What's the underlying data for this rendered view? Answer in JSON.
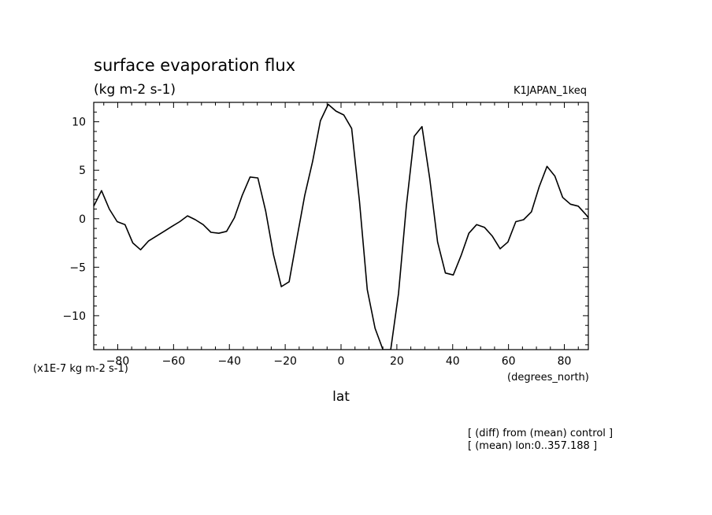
{
  "chart_data": {
    "type": "line",
    "title": "surface evaporation flux",
    "units": "(kg m-2 s-1)",
    "experiment": "K1JAPAN_1keq",
    "scale_note": "(x1E-7 kg m-2 s-1)",
    "xlabel": "lat",
    "xunits": "(degrees_north)",
    "note1": "[ (diff) from (mean) control ]",
    "note2": "[ (mean) lon:0..357.188 ]",
    "xlim": [
      -88.6,
      88.6
    ],
    "ylim": [
      -13.5,
      12.0
    ],
    "xticks": [
      -80,
      -60,
      -40,
      -20,
      0,
      20,
      40,
      60,
      80
    ],
    "yticks": [
      -10,
      -5,
      0,
      5,
      10
    ],
    "grid": false,
    "series": [
      {
        "x": [
          -88.6,
          -85.8,
          -83.0,
          -80.2,
          -77.4,
          -74.6,
          -71.8,
          -69.0,
          -66.2,
          -63.4,
          -60.6,
          -57.8,
          -55.0,
          -52.2,
          -49.4,
          -46.6,
          -43.8,
          -41.0,
          -38.2,
          -35.4,
          -32.6,
          -29.8,
          -27.0,
          -24.2,
          -21.4,
          -18.6,
          -15.8,
          -13.0,
          -10.2,
          -7.4,
          -4.6,
          -1.8,
          1.0,
          3.8,
          6.6,
          9.4,
          12.2,
          15.0,
          17.8,
          20.6,
          23.4,
          26.2,
          29.0,
          31.8,
          34.6,
          37.4,
          40.2,
          43.0,
          45.8,
          48.6,
          51.4,
          54.2,
          57.0,
          59.8,
          62.6,
          65.4,
          68.2,
          71.0,
          73.8,
          76.6,
          79.4,
          82.2,
          85.0,
          87.8,
          88.6
        ],
        "y": [
          1.3,
          2.9,
          1.0,
          -0.3,
          -0.6,
          -2.5,
          -3.2,
          -2.3,
          -1.8,
          -1.3,
          -0.8,
          -0.3,
          0.3,
          -0.1,
          -0.6,
          -1.4,
          -1.5,
          -1.3,
          0.1,
          2.4,
          4.3,
          4.2,
          0.8,
          -3.7,
          -7.0,
          -6.5,
          -2.0,
          2.4,
          5.9,
          10.1,
          11.8,
          11.1,
          10.7,
          9.3,
          1.8,
          -7.3,
          -11.3,
          -13.5,
          -13.5,
          -7.7,
          1.3,
          8.5,
          9.5,
          4.1,
          -2.4,
          -5.6,
          -5.8,
          -3.8,
          -1.5,
          -0.6,
          -0.9,
          -1.8,
          -3.1,
          -2.4,
          -0.3,
          -0.1,
          0.7,
          3.3,
          5.4,
          4.4,
          2.2,
          1.5,
          1.3,
          0.4,
          0.1
        ]
      }
    ]
  }
}
